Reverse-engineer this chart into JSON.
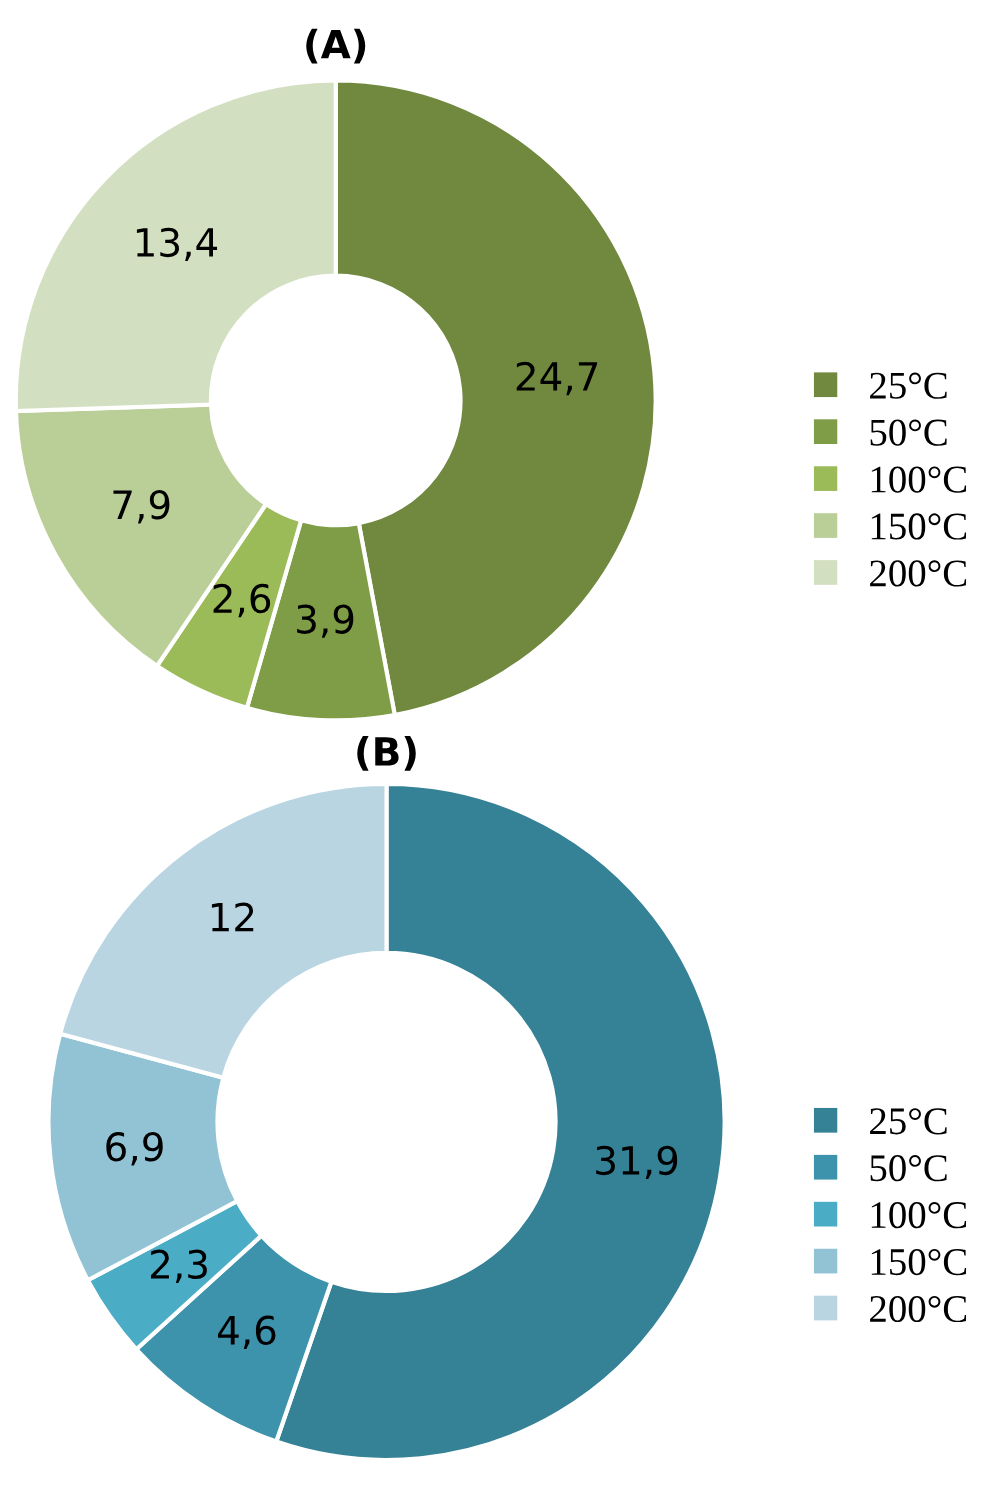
{
  "chart_data": [
    {
      "type": "donut",
      "title": "(A)",
      "categories": [
        "25°C",
        "50°C",
        "100°C",
        "150°C",
        "200°C"
      ],
      "values": [
        24.7,
        3.9,
        2.6,
        7.9,
        13.4
      ],
      "value_labels": [
        "24,7",
        "3,9",
        "2,6",
        "7,9",
        "13,4"
      ],
      "colors": [
        "#71893f",
        "#7f9d46",
        "#9bbb59",
        "#bacf98",
        "#d3dfc1"
      ],
      "legend": "right"
    },
    {
      "type": "donut",
      "title": "(B)",
      "categories": [
        "25°C",
        "50°C",
        "100°C",
        "150°C",
        "200°C"
      ],
      "values": [
        31.9,
        4.6,
        2.3,
        6.9,
        12
      ],
      "value_labels": [
        "31,9",
        "4,6",
        "2,3",
        "6,9",
        "12"
      ],
      "colors": [
        "#358196",
        "#3e93ac",
        "#4bacc6",
        "#92c3d5",
        "#b9d5e2"
      ],
      "legend": "right"
    }
  ]
}
